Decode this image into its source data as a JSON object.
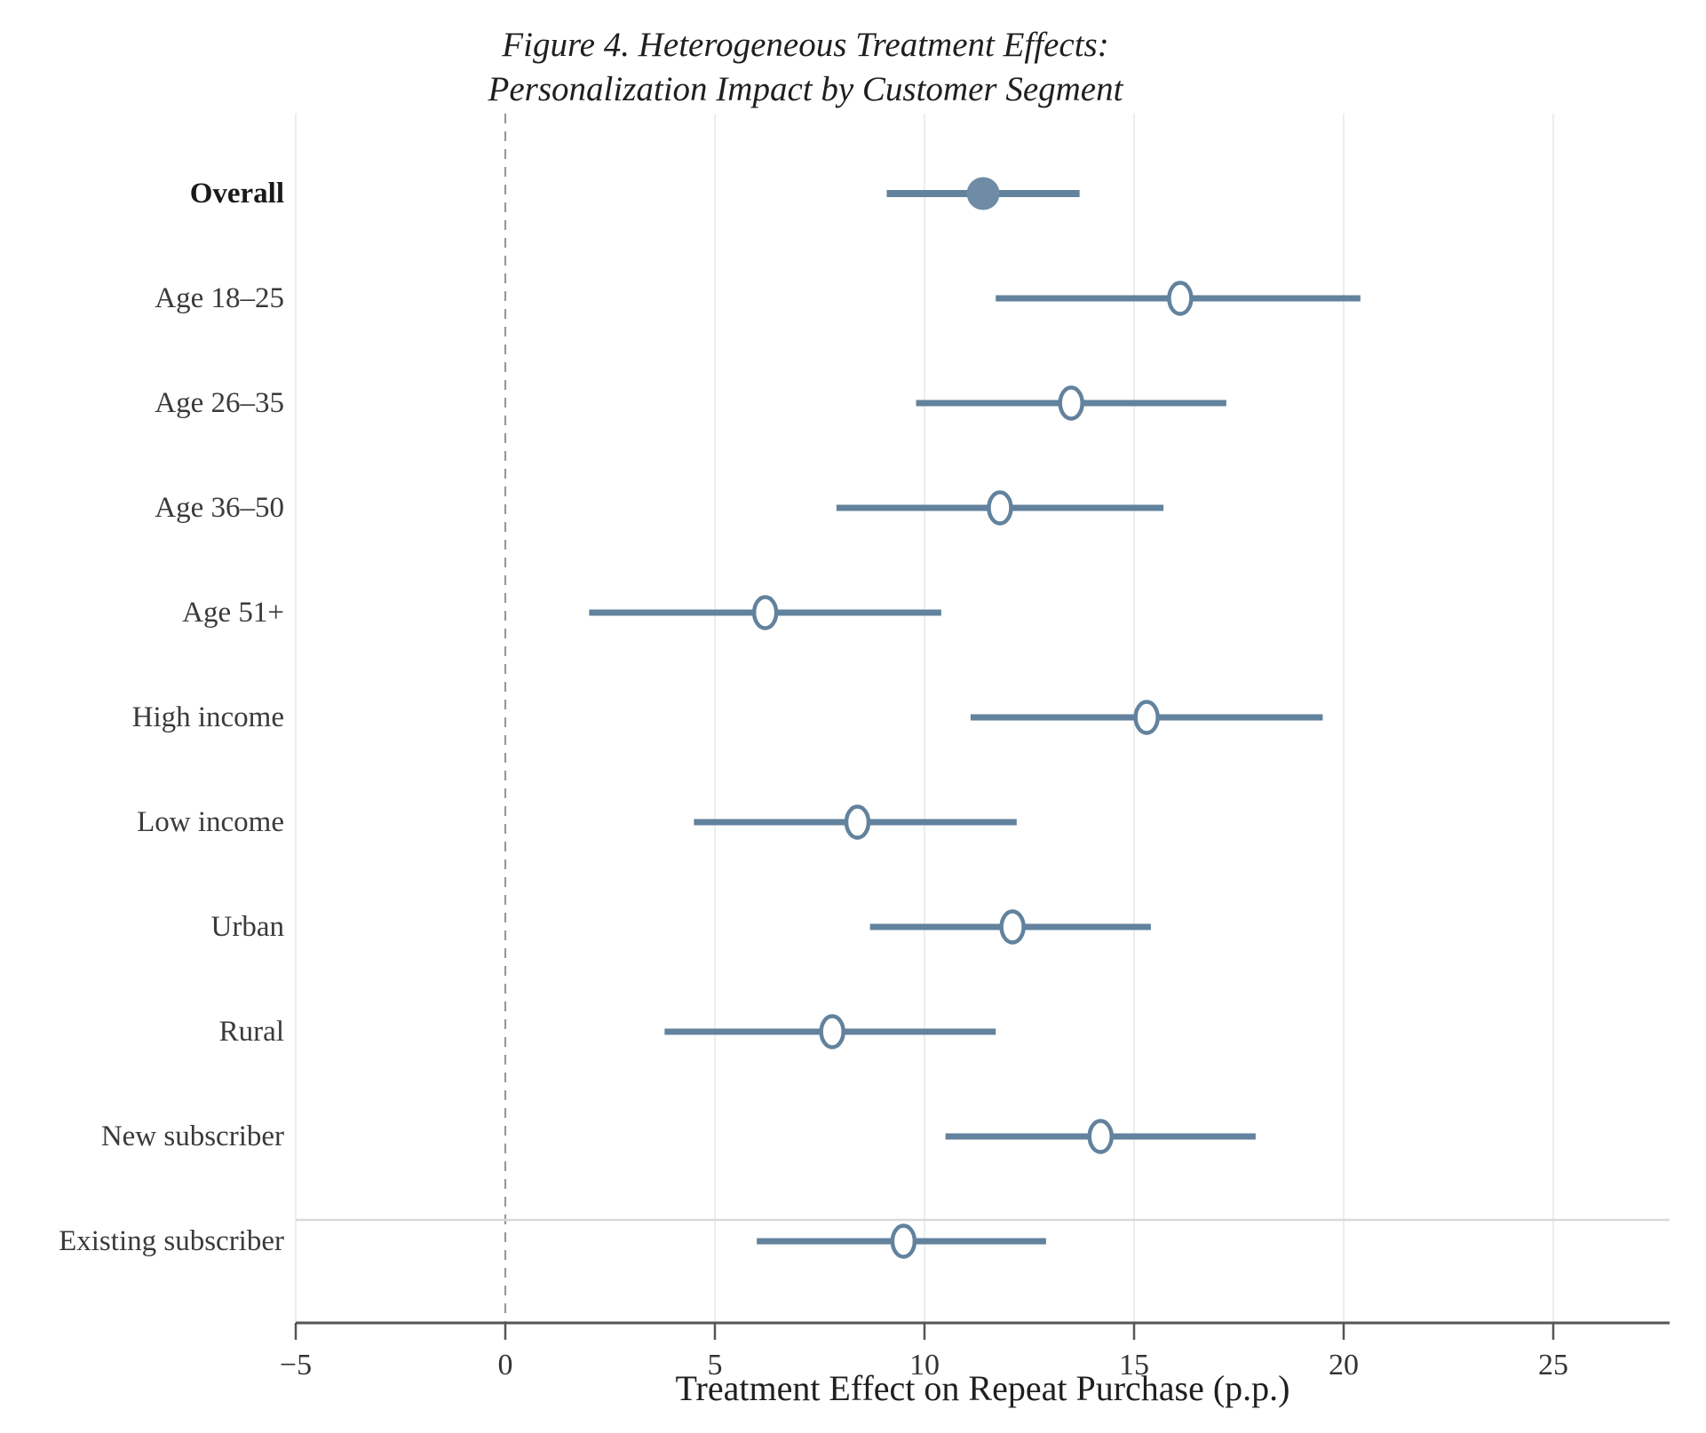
{
  "title": {
    "line1": "Figure 4. Heterogeneous Treatment Effects:",
    "line2": "Personalization Impact by Customer Segment"
  },
  "chart_data": {
    "type": "scatter",
    "subtype": "forest-plot-with-confidence-intervals",
    "title": "Figure 4. Heterogeneous Treatment Effects: Personalization Impact by Customer Segment",
    "xlabel": "Treatment Effect on Repeat Purchase (p.p.)",
    "ylabel": "",
    "xlim": [
      -5,
      27.7
    ],
    "xticks": [
      -5,
      0,
      5,
      10,
      15,
      20,
      25
    ],
    "xtick_labels": [
      "−5",
      "0",
      "5",
      "10",
      "15",
      "20",
      "25"
    ],
    "grid": "vertical-light",
    "zero_reference_line": 0,
    "legend": "none",
    "rows": [
      {
        "label": "Overall",
        "estimate": 11.4,
        "ci_low": 9.1,
        "ci_high": 13.7,
        "marker": "filled",
        "bold": true
      },
      {
        "label": "Age 18–25",
        "estimate": 16.1,
        "ci_low": 11.7,
        "ci_high": 20.4,
        "marker": "open",
        "bold": false
      },
      {
        "label": "Age 26–35",
        "estimate": 13.5,
        "ci_low": 9.8,
        "ci_high": 17.2,
        "marker": "open",
        "bold": false
      },
      {
        "label": "Age 36–50",
        "estimate": 11.8,
        "ci_low": 7.9,
        "ci_high": 15.7,
        "marker": "open",
        "bold": false
      },
      {
        "label": "Age 51+",
        "estimate": 6.2,
        "ci_low": 2.0,
        "ci_high": 10.4,
        "marker": "open",
        "bold": false
      },
      {
        "label": "High income",
        "estimate": 15.3,
        "ci_low": 11.1,
        "ci_high": 19.5,
        "marker": "open",
        "bold": false
      },
      {
        "label": "Low income",
        "estimate": 8.4,
        "ci_low": 4.5,
        "ci_high": 12.2,
        "marker": "open",
        "bold": false
      },
      {
        "label": "Urban",
        "estimate": 12.1,
        "ci_low": 8.7,
        "ci_high": 15.4,
        "marker": "open",
        "bold": false
      },
      {
        "label": "Rural",
        "estimate": 7.8,
        "ci_low": 3.8,
        "ci_high": 11.7,
        "marker": "open",
        "bold": false
      },
      {
        "label": "New subscriber",
        "estimate": 14.2,
        "ci_low": 10.5,
        "ci_high": 17.9,
        "marker": "open",
        "bold": false
      },
      {
        "label": "Existing subscriber",
        "estimate": 9.5,
        "ci_low": 6.0,
        "ci_high": 12.9,
        "marker": "open",
        "bold": false
      }
    ],
    "colors": {
      "marker_fill": "#6e8ca5",
      "ci_line": "#62829d",
      "open_marker_fill": "#ffffff",
      "axis_line": "#555555",
      "tick_text": "#333333",
      "gridline": "#ebebeb",
      "zero_line": "#999999",
      "separator_line": "#d9d9d9",
      "label_text": "#3a3a3a"
    }
  }
}
